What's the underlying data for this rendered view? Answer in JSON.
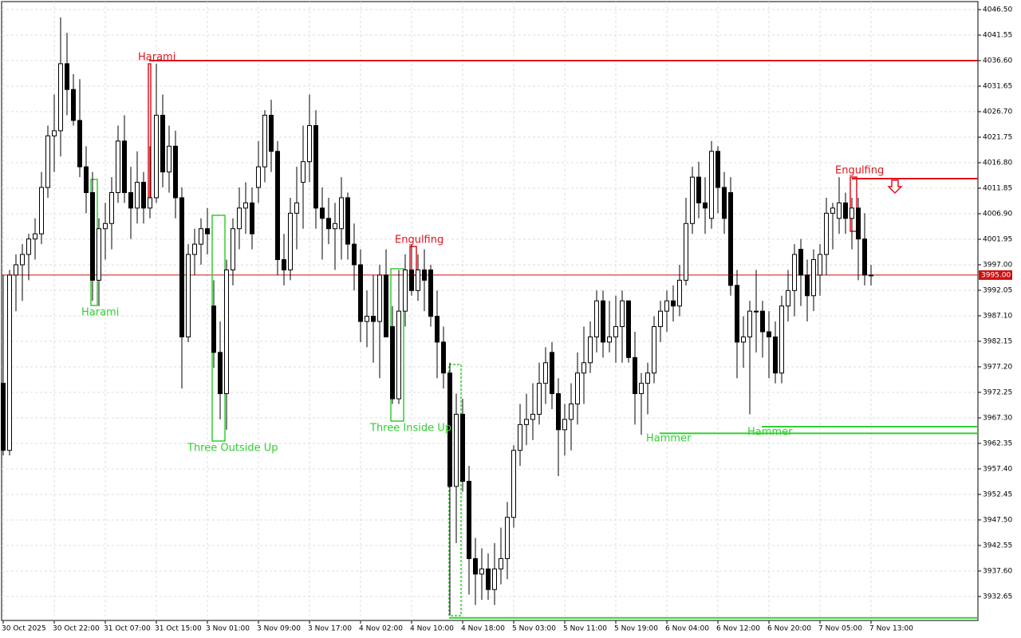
{
  "chart_data": {
    "type": "candlestick",
    "categories": [
      "30 Oct 2025",
      null,
      null,
      null,
      null,
      null,
      null,
      null,
      "30 Oct 22:00",
      null,
      null,
      null,
      null,
      null,
      null,
      null,
      "31 Oct 07:00",
      null,
      null,
      null,
      null,
      null,
      null,
      null,
      "31 Oct 15:00",
      null,
      null,
      null,
      null,
      null,
      null,
      null,
      "3 Nov 01:00",
      null,
      null,
      null,
      null,
      null,
      null,
      null,
      "3 Nov 09:00",
      null,
      null,
      null,
      null,
      null,
      null,
      null,
      "3 Nov 17:00",
      null,
      null,
      null,
      null,
      null,
      null,
      null,
      "4 Nov 02:00",
      null,
      null,
      null,
      null,
      null,
      null,
      null,
      "4 Nov 10:00",
      null,
      null,
      null,
      null,
      null,
      null,
      null,
      "4 Nov 18:00",
      null,
      null,
      null,
      null,
      null,
      null,
      null,
      "5 Nov 03:00",
      null,
      null,
      null,
      null,
      null,
      null,
      null,
      "5 Nov 11:00",
      null,
      null,
      null,
      null,
      null,
      null,
      null,
      "5 Nov 19:00",
      null,
      null,
      null,
      null,
      null,
      null,
      null,
      "6 Nov 04:00",
      null,
      null,
      null,
      null,
      null,
      null,
      null,
      "6 Nov 12:00",
      null,
      null,
      null,
      null,
      null,
      null,
      null,
      "6 Nov 20:00",
      null,
      null,
      null,
      null,
      null,
      null,
      null,
      "7 Nov 05:00",
      null,
      null,
      null,
      null,
      null,
      null,
      null,
      "7 Nov 13:00"
    ],
    "open": [
      3974,
      3961,
      3995,
      3997,
      3999,
      4002,
      4003,
      4012,
      4022,
      4023,
      4036,
      4031,
      4025,
      4016,
      4011,
      3994,
      4004,
      4005,
      4011,
      4021,
      4011,
      4008,
      4013,
      4008,
      4010,
      4026,
      4015,
      4020,
      4010,
      3983,
      3999,
      4001,
      4004,
      3989,
      3980,
      3972,
      3996,
      4004,
      4008,
      4009,
      4012,
      4016,
      4026,
      4019,
      3998,
      3996,
      4007,
      4013,
      4017,
      4024,
      4008,
      4006,
      4004,
      4004,
      4010,
      4001,
      3997,
      3986,
      3987,
      3986,
      3995,
      3985,
      3971,
      3988,
      3996,
      3992,
      3996,
      3996,
      3987,
      3982,
      3976,
      3954,
      3968,
      3955,
      3940,
      3937,
      3938,
      3934,
      3938,
      3940,
      3948,
      3961,
      3966,
      3967,
      3968,
      3974,
      3980,
      3972,
      3965,
      3967,
      3970,
      3976,
      3978,
      3983,
      3990,
      3982,
      3983,
      3985,
      3990,
      3979,
      3972,
      3974,
      3976,
      3985,
      3988,
      3990,
      3989,
      3994,
      4005,
      4014,
      4009,
      4006,
      4019,
      4012,
      4011,
      3993,
      3982,
      3983,
      3988,
      3988,
      3984,
      3983,
      3976,
      3989,
      3992,
      4000,
      3995,
      3991,
      3995,
      3999,
      4007,
      4006,
      4009,
      4006,
      4008,
      4002,
      3995
    ],
    "high": [
      3995,
      3996,
      3999,
      4001,
      4003,
      4006,
      4015,
      4024,
      4030,
      4045,
      4042,
      4034,
      4033,
      4020,
      4015,
      4006,
      4009,
      4014,
      4024,
      4026,
      4016,
      4019,
      4015,
      4020,
      4036,
      4030,
      4024,
      4023,
      4012,
      4001,
      4004,
      4006,
      4008,
      3994,
      3986,
      3998,
      4006,
      4012,
      4013,
      4012,
      4021,
      4027,
      4029,
      4021,
      4003,
      4010,
      4016,
      4024,
      4030,
      4027,
      4012,
      4010,
      4009,
      4014,
      4011,
      4005,
      4000,
      3992,
      3995,
      3997,
      4000,
      3989,
      3996,
      3999,
      4001,
      3999,
      4000,
      3997,
      3992,
      3985,
      3978,
      3972,
      3971,
      3958,
      3944,
      3942,
      3941,
      3943,
      3946,
      3951,
      3962,
      3970,
      3972,
      3974,
      3978,
      3981,
      3982,
      3975,
      3970,
      3974,
      3980,
      3985,
      3986,
      3992,
      3992,
      3990,
      3991,
      3992,
      3990,
      3984,
      3976,
      3978,
      3987,
      3990,
      3992,
      3993,
      3997,
      4010,
      4016,
      4017,
      4014,
      4021,
      4020,
      4015,
      4014,
      3996,
      3987,
      3990,
      3996,
      3990,
      3988,
      3986,
      3991,
      3996,
      4001,
      4002,
      3998,
      4000,
      4001,
      4010,
      4009,
      4014,
      4011,
      4010,
      4010,
      4007,
      3997
    ],
    "low": [
      3960,
      3960,
      3988,
      3990,
      3994,
      3998,
      4001,
      4010,
      4015,
      4018,
      4026,
      4024,
      4014,
      4007,
      3990,
      3989,
      3998,
      4000,
      4009,
      4009,
      4002,
      4005,
      4005,
      4006,
      4009,
      4012,
      4011,
      4006,
      3973,
      3982,
      3995,
      3997,
      3999,
      3977,
      3967,
      3965,
      3993,
      4000,
      4003,
      4000,
      4009,
      4013,
      4015,
      3995,
      3993,
      3994,
      4000,
      4004,
      4013,
      4004,
      3998,
      4001,
      3996,
      3998,
      3998,
      3992,
      3982,
      3981,
      3978,
      3975,
      3983,
      3970,
      3970,
      3985,
      3991,
      3990,
      3988,
      3985,
      3975,
      3973,
      3929,
      3943,
      3953,
      3933,
      3931,
      3932,
      3932,
      3931,
      3935,
      3936,
      3946,
      3958,
      3962,
      3963,
      3966,
      3970,
      3969,
      3956,
      3960,
      3961,
      3966,
      3970,
      3976,
      3980,
      3979,
      3980,
      3978,
      3978,
      3978,
      3966,
      3964,
      3968,
      3974,
      3982,
      3984,
      3986,
      3987,
      3993,
      4003,
      4006,
      4003,
      4004,
      4007,
      4003,
      3991,
      3975,
      3977,
      3968,
      3980,
      3979,
      3975,
      3974,
      3974,
      3986,
      3987,
      3989,
      3986,
      3988,
      3991,
      3995,
      4000,
      4003,
      4003,
      4000,
      3994,
      3993,
      3993
    ],
    "close": [
      3961,
      3995,
      3997,
      3999,
      4002,
      4003,
      4012,
      4022,
      4023,
      4036,
      4031,
      4025,
      4016,
      4011,
      3994,
      4004,
      4005,
      4011,
      4021,
      4011,
      4008,
      4013,
      4008,
      4010,
      4026,
      4015,
      4020,
      4010,
      3983,
      3999,
      4001,
      4004,
      4003,
      3980,
      3972,
      3996,
      4004,
      4008,
      4009,
      4003,
      4016,
      4026,
      4019,
      3998,
      3996,
      4007,
      4009,
      4017,
      4024,
      4008,
      4006,
      4004,
      4005,
      4010,
      4001,
      3997,
      3986,
      3987,
      3986,
      3995,
      3983,
      3971,
      3988,
      3996,
      3992,
      3996,
      3994,
      3987,
      3982,
      3976,
      3954,
      3968,
      3955,
      3940,
      3937,
      3938,
      3934,
      3938,
      3940,
      3948,
      3961,
      3966,
      3967,
      3968,
      3974,
      3978,
      3972,
      3965,
      3967,
      3970,
      3976,
      3978,
      3983,
      3990,
      3982,
      3983,
      3985,
      3990,
      3979,
      3972,
      3974,
      3976,
      3985,
      3988,
      3990,
      3989,
      3994,
      4005,
      4014,
      4009,
      4008,
      4019,
      4012,
      4006,
      3993,
      3982,
      3983,
      3988,
      3988,
      3984,
      3983,
      3976,
      3989,
      3992,
      3999,
      3995,
      3991,
      3998,
      3999,
      4007,
      4008,
      4009,
      4006,
      4008,
      4002,
      3995,
      3995
    ],
    "bull_color": "#ffffff",
    "bear_color": "#000000",
    "ylim": [
      3928.0,
      4048.05
    ],
    "yticks": [
      {
        "value": 4046.5,
        "label": "4046.50"
      },
      4041.55,
      {
        "value": 4036.6,
        "label": "4036.60"
      },
      4031.65,
      {
        "value": 4026.7,
        "label": "4026.70"
      },
      4021.75,
      {
        "value": 4016.8,
        "label": "4016.80"
      },
      4011.85,
      {
        "value": 4006.9,
        "label": "4006.90"
      },
      4001.95,
      {
        "value": 3997,
        "label": "3997.00"
      },
      3992.05,
      {
        "value": 3987.1,
        "label": "3987.10"
      },
      3982.15,
      {
        "value": 3977.2,
        "label": "3977.20"
      },
      3972.25,
      {
        "value": 3967.3,
        "label": "3967.30"
      },
      3962.35,
      {
        "value": 3957.4,
        "label": "3957.40"
      },
      3952.45,
      {
        "value": 3947.5,
        "label": "3947.50"
      },
      3942.55,
      {
        "value": 3937.6,
        "label": "3937.60"
      },
      3932.65
    ],
    "grid": true,
    "current_price": {
      "value": 3995,
      "label": "3995.00",
      "color": "#d01010"
    },
    "levels": [
      {
        "value": 4036.6,
        "color": "#e0141e"
      },
      {
        "value": 4013.7,
        "color": "#e0141e"
      },
      {
        "value": 3965.6,
        "color": "#32cd32"
      },
      {
        "value": 3964.3,
        "color": "#32cd32"
      },
      {
        "value": 3928.5,
        "color": "#32cd32"
      }
    ],
    "annotations": [
      {
        "text": "Harami",
        "color": "#e0141e"
      },
      {
        "text": "Harami",
        "color": "#32cd32"
      },
      {
        "text": "Three Outside Up",
        "color": "#32cd32"
      },
      {
        "text": "Engulfing",
        "color": "#e0141e"
      },
      {
        "text": "Three Inside Up",
        "color": "#32cd32"
      },
      {
        "text": "Hammer",
        "color": "#32cd32"
      },
      {
        "text": "Hammer",
        "color": "#32cd32"
      },
      {
        "text": "Engulfing",
        "color": "#e0141e"
      }
    ]
  }
}
